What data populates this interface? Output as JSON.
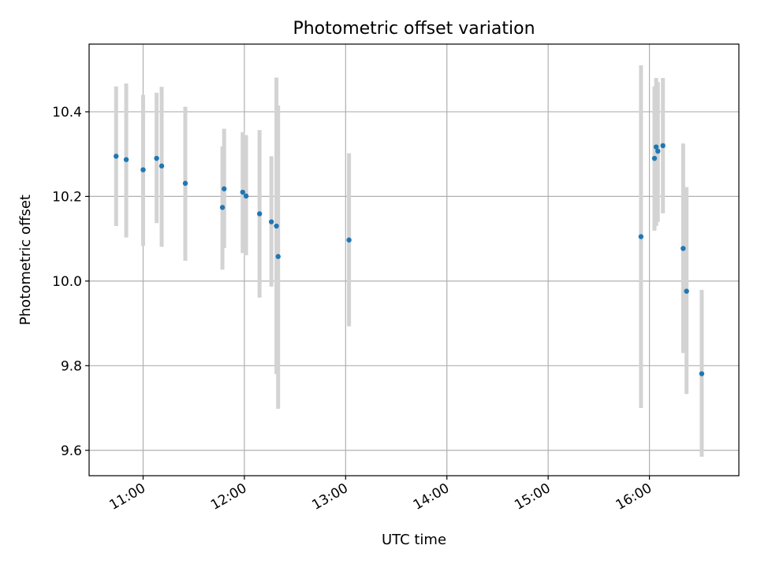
{
  "chart_data": {
    "type": "scatter",
    "title": "Photometric offset variation",
    "xlabel": "UTC time",
    "ylabel": "Photometric offset",
    "x_ticks": [
      "11:00",
      "12:00",
      "13:00",
      "14:00",
      "15:00",
      "16:00"
    ],
    "y_ticks": [
      "9.6",
      "9.8",
      "10.0",
      "10.2",
      "10.4"
    ],
    "xlim": [
      "10:28",
      "16:53"
    ],
    "ylim": [
      9.54,
      10.56
    ],
    "grid": true,
    "colors": {
      "marker": "#1f77b4",
      "errorbar": "#d3d3d3",
      "grid": "#b0b0b0"
    },
    "points": [
      {
        "x": "10:44",
        "y": 10.295,
        "ylow": 10.13,
        "yhigh": 10.46
      },
      {
        "x": "10:50",
        "y": 10.287,
        "ylow": 10.103,
        "yhigh": 10.467
      },
      {
        "x": "11:00",
        "y": 10.263,
        "ylow": 10.083,
        "yhigh": 10.44
      },
      {
        "x": "11:08",
        "y": 10.29,
        "ylow": 10.137,
        "yhigh": 10.445
      },
      {
        "x": "11:11",
        "y": 10.272,
        "ylow": 10.081,
        "yhigh": 10.459
      },
      {
        "x": "11:25",
        "y": 10.231,
        "ylow": 10.048,
        "yhigh": 10.412
      },
      {
        "x": "11:47",
        "y": 10.174,
        "ylow": 10.027,
        "yhigh": 10.318
      },
      {
        "x": "11:48",
        "y": 10.218,
        "ylow": 10.078,
        "yhigh": 10.36
      },
      {
        "x": "11:59",
        "y": 10.21,
        "ylow": 10.066,
        "yhigh": 10.352
      },
      {
        "x": "12:01",
        "y": 10.201,
        "ylow": 10.061,
        "yhigh": 10.345
      },
      {
        "x": "12:09",
        "y": 10.159,
        "ylow": 9.961,
        "yhigh": 10.357
      },
      {
        "x": "12:16",
        "y": 10.14,
        "ylow": 9.987,
        "yhigh": 10.295
      },
      {
        "x": "12:19",
        "y": 10.13,
        "ylow": 9.78,
        "yhigh": 10.481
      },
      {
        "x": "12:20",
        "y": 10.058,
        "ylow": 9.698,
        "yhigh": 10.415
      },
      {
        "x": "13:02",
        "y": 10.097,
        "ylow": 9.893,
        "yhigh": 10.302
      },
      {
        "x": "15:55",
        "y": 10.105,
        "ylow": 9.7,
        "yhigh": 10.51
      },
      {
        "x": "16:03",
        "y": 10.29,
        "ylow": 10.119,
        "yhigh": 10.46
      },
      {
        "x": "16:04",
        "y": 10.317,
        "ylow": 10.13,
        "yhigh": 10.48
      },
      {
        "x": "16:05",
        "y": 10.307,
        "ylow": 10.14,
        "yhigh": 10.47
      },
      {
        "x": "16:08",
        "y": 10.32,
        "ylow": 10.16,
        "yhigh": 10.48
      },
      {
        "x": "16:20",
        "y": 10.077,
        "ylow": 9.83,
        "yhigh": 10.325
      },
      {
        "x": "16:22",
        "y": 9.976,
        "ylow": 9.733,
        "yhigh": 10.222
      },
      {
        "x": "16:31",
        "y": 9.781,
        "ylow": 9.585,
        "yhigh": 9.979
      }
    ]
  }
}
